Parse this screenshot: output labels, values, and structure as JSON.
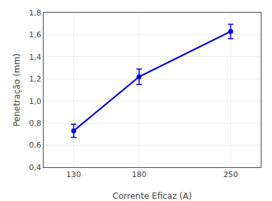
{
  "chart_data": {
    "type": "line",
    "x": [
      130,
      180,
      250
    ],
    "values": [
      0.73,
      1.22,
      1.63
    ],
    "yerr": [
      0.06,
      0.07,
      0.065
    ],
    "xlabel": "Corrente Eficaz (A)",
    "ylabel": "Penetração (mm)",
    "xlim": [
      107,
      273
    ],
    "ylim": [
      0.4,
      1.8
    ],
    "xticks": [
      130,
      180,
      250
    ],
    "yticks": [
      {
        "value": 0.4,
        "label": "0,4"
      },
      {
        "value": 0.6,
        "label": "0,6"
      },
      {
        "value": 0.8,
        "label": "0,8"
      },
      {
        "value": 1.0,
        "label": "1,0"
      },
      {
        "value": 1.2,
        "label": "1,2"
      },
      {
        "value": 1.4,
        "label": "1,4"
      },
      {
        "value": 1.6,
        "label": "1,6"
      },
      {
        "value": 1.8,
        "label": "1,8"
      }
    ],
    "color": "#0000DD",
    "marker": "circle",
    "grid": true
  }
}
